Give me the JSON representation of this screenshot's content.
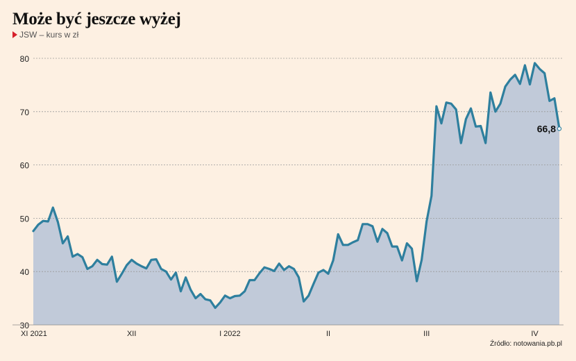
{
  "title": "Może być jeszcze wyżej",
  "subtitle": "JSW – kurs w zł",
  "source": "Źródło: notowania.pb.pl",
  "colors": {
    "line": "#2e7f9e",
    "area": "#c1cad9",
    "grid": "#999999",
    "marker": "#d6202a",
    "background": "#fdf0e2"
  },
  "chart_data": {
    "type": "area",
    "title": "Może być jeszcze wyżej",
    "subtitle": "JSW – kurs w zł",
    "ylim": [
      30,
      80
    ],
    "yticks": [
      30,
      40,
      50,
      60,
      70,
      80
    ],
    "grid": true,
    "x_tick_labels": [
      {
        "label": "XI 2021",
        "index": 0
      },
      {
        "label": "XII",
        "index": 20
      },
      {
        "label": "I 2022",
        "index": 40
      },
      {
        "label": "II",
        "index": 60
      },
      {
        "label": "III",
        "index": 80
      },
      {
        "label": "IV",
        "index": 102
      }
    ],
    "last_value_label": "66,8",
    "series": [
      {
        "values": [
          47.6,
          48.8,
          49.5,
          49.4,
          52.0,
          49.3,
          45.3,
          46.6,
          42.8,
          43.3,
          42.7,
          40.5,
          41.0,
          42.2,
          41.4,
          41.3,
          42.8,
          38.1,
          39.6,
          41.2,
          42.2,
          41.5,
          41.0,
          40.6,
          42.2,
          42.3,
          40.5,
          40.0,
          38.5,
          39.8,
          36.3,
          38.9,
          36.6,
          35.0,
          35.8,
          34.8,
          34.6,
          33.2,
          34.2,
          35.5,
          35.0,
          35.4,
          35.5,
          36.3,
          38.4,
          38.4,
          39.7,
          40.8,
          40.5,
          40.1,
          41.5,
          40.3,
          41.0,
          40.5,
          38.9,
          34.4,
          35.5,
          37.7,
          39.8,
          40.3,
          39.6,
          42.1,
          47.0,
          45.0,
          45.0,
          45.5,
          45.9,
          48.9,
          48.9,
          48.5,
          45.6,
          48.0,
          47.2,
          44.7,
          44.7,
          42.1,
          45.3,
          44.3,
          38.2,
          42.2,
          49.4,
          54.2,
          71.0,
          67.8,
          71.7,
          71.5,
          70.4,
          64.1,
          68.6,
          70.6,
          67.2,
          67.3,
          64.1,
          73.6,
          70.0,
          71.5,
          74.7,
          76.0,
          76.9,
          75.2,
          78.7,
          75.1,
          79.1,
          78.0,
          77.2,
          72.0,
          72.5,
          66.8
        ]
      }
    ]
  }
}
